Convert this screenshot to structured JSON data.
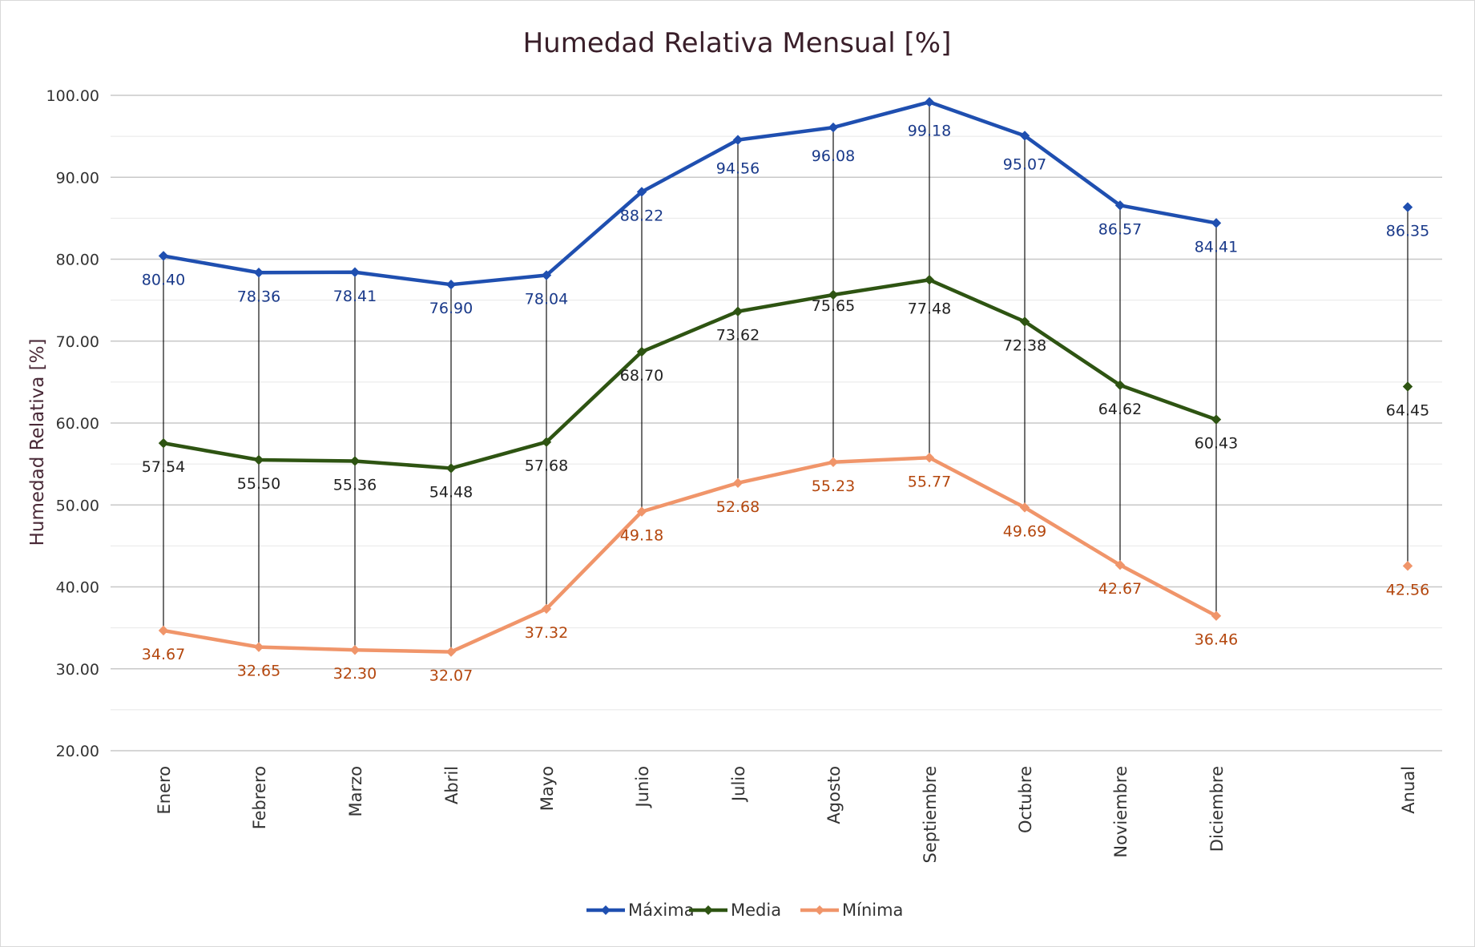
{
  "chart_data": {
    "type": "line",
    "title": "Humedad Relativa Mensual [%]",
    "ylabel": "Humedad Relativa [%]",
    "xlabel": "",
    "ylim": [
      20,
      100
    ],
    "ytick_step": 10,
    "minor_grid_step": 5,
    "grid": true,
    "legend_position": "bottom",
    "categories": [
      "Enero",
      "Febrero",
      "Marzo",
      "Abril",
      "Mayo",
      "Junio",
      "Julio",
      "Agosto",
      "Septiembre",
      "Octubre",
      "Noviembre",
      "Diciembre",
      "Anual"
    ],
    "series": [
      {
        "name": "Máxima",
        "color": "#1f4fb0",
        "label_color": "#1a3a8a",
        "values": [
          80.4,
          78.36,
          78.41,
          76.9,
          78.04,
          88.22,
          94.56,
          96.08,
          99.18,
          95.07,
          86.57,
          84.41,
          86.35
        ],
        "labels": [
          "80.40",
          "78.36",
          "78.41",
          "76.90",
          "78.04",
          "88.22",
          "94.56",
          "96.08",
          "99.18",
          "95.07",
          "86.57",
          "84.41",
          "86.35"
        ]
      },
      {
        "name": "Media",
        "color": "#2e5412",
        "label_color": "#222222",
        "values": [
          57.54,
          55.5,
          55.36,
          54.48,
          57.68,
          68.7,
          73.62,
          75.65,
          77.48,
          72.38,
          64.62,
          60.43,
          64.45
        ],
        "labels": [
          "57.54",
          "55.50",
          "55.36",
          "54.48",
          "57.68",
          "68.70",
          "73.62",
          "75.65",
          "77.48",
          "72.38",
          "64.62",
          "60.43",
          "64.45"
        ]
      },
      {
        "name": "Mínima",
        "color": "#f0956a",
        "label_color": "#b4470e",
        "values": [
          34.67,
          32.65,
          32.3,
          32.07,
          37.32,
          49.18,
          52.68,
          55.23,
          55.77,
          49.69,
          42.67,
          36.46,
          42.56
        ],
        "labels": [
          "34.67",
          "32.65",
          "32.30",
          "32.07",
          "37.32",
          "49.18",
          "52.68",
          "55.23",
          "55.77",
          "49.69",
          "42.67",
          "36.46",
          "42.56"
        ]
      }
    ],
    "connected_points": 12,
    "high_low_lines": true
  }
}
